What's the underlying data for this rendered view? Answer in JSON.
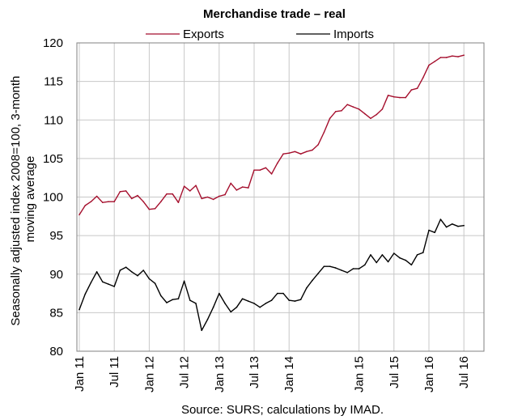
{
  "chart_data": {
    "type": "line",
    "title": "Merchandise trade – real",
    "ylabel_lines": [
      "Seasonally adjusted index 2008=100, 3-month",
      "moving average"
    ],
    "source": "Source: SURS; calculations by IMAD.",
    "ylim": [
      80,
      120
    ],
    "yticks": [
      "80",
      "85",
      "90",
      "95",
      "100",
      "105",
      "110",
      "115",
      "120"
    ],
    "xticks": [
      "Jan 11",
      "Jul 11",
      "Jan 12",
      "Jul 12",
      "Jan 13",
      "Jul 13",
      "Jan 14",
      "Jan 15",
      "Jul 15",
      "Jan 16",
      "Jul 16"
    ],
    "xtick_months": [
      0,
      6,
      12,
      18,
      24,
      30,
      36,
      48,
      54,
      60,
      66
    ],
    "grid": true,
    "legend_position": "top-center",
    "series": [
      {
        "name": "Exports",
        "color": "#a50f2d",
        "values": [
          97.7,
          98.9,
          99.4,
          100.1,
          99.3,
          99.4,
          99.4,
          100.7,
          100.8,
          99.8,
          100.2,
          99.4,
          98.4,
          98.5,
          99.4,
          100.4,
          100.4,
          99.3,
          101.4,
          100.8,
          101.5,
          99.8,
          100.0,
          99.7,
          100.1,
          100.3,
          101.8,
          100.9,
          101.3,
          101.2,
          103.5,
          103.5,
          103.8,
          103.0,
          104.4,
          105.6,
          105.7,
          105.9,
          105.6,
          105.9,
          106.1,
          106.8,
          108.4,
          110.2,
          111.1,
          111.2,
          112.0,
          111.7,
          111.4,
          110.8,
          110.2,
          110.7,
          111.4,
          113.2,
          113.0,
          112.9,
          112.9,
          113.9,
          114.1,
          115.5,
          117.1,
          117.6,
          118.1,
          118.1,
          118.3,
          118.2,
          118.4
        ]
      },
      {
        "name": "Imports",
        "color": "#000000",
        "values": [
          85.4,
          87.4,
          88.9,
          90.3,
          89.0,
          88.7,
          88.4,
          90.5,
          90.9,
          90.3,
          89.8,
          90.5,
          89.4,
          88.8,
          87.2,
          86.3,
          86.7,
          86.8,
          89.1,
          86.6,
          86.2,
          82.7,
          84.1,
          85.7,
          87.5,
          86.2,
          85.1,
          85.7,
          86.8,
          86.5,
          86.2,
          85.7,
          86.2,
          86.6,
          87.5,
          87.5,
          86.6,
          86.5,
          86.7,
          88.2,
          89.2,
          90.1,
          91.0,
          91.0,
          90.8,
          90.5,
          90.2,
          90.7,
          90.7,
          91.2,
          92.5,
          91.5,
          92.5,
          91.6,
          92.7,
          92.1,
          91.8,
          91.2,
          92.5,
          92.8,
          95.7,
          95.4,
          97.1,
          96.1,
          96.5,
          96.2,
          96.3
        ]
      }
    ]
  }
}
